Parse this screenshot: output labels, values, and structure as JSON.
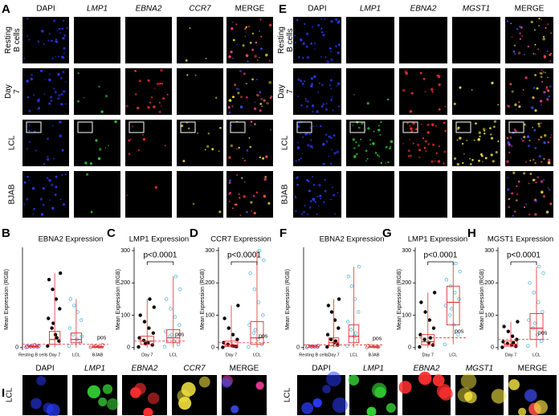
{
  "panel_A": {
    "letter": "A",
    "columns": [
      "DAPI",
      "LMP1",
      "EBNA2",
      "CCR7",
      "MERGE"
    ],
    "rows": [
      "Resting B cells",
      "Day 7",
      "LCL",
      "BJAB"
    ]
  },
  "panel_E": {
    "letter": "E",
    "columns": [
      "DAPI",
      "LMP1",
      "EBNA2",
      "MGST1",
      "MERGE"
    ],
    "rows": [
      "Resting B cells",
      "Day 7",
      "LCL",
      "BJAB"
    ]
  },
  "panel_I_left": {
    "letter": "I",
    "row": "LCL",
    "columns": [
      "DAPI",
      "LMP1",
      "EBNA2",
      "CCR7",
      "MERGE"
    ]
  },
  "panel_I_right": {
    "row": "LCL",
    "columns": [
      "DAPI",
      "LMP1",
      "EBNA2",
      "MGST1",
      "MERGE"
    ]
  },
  "chart_data": [
    {
      "type": "box",
      "letter": "B",
      "title": "EBNA2 Expression",
      "ylabel": "Mean Expression (RGB)",
      "categories": [
        "Resting B cells",
        "Day 7",
        "LCL",
        "BJAB"
      ],
      "colors": [
        "#7a4fa0",
        "#000000",
        "#5fb4e0",
        "#d05050"
      ],
      "boxes": [
        [
          0,
          2,
          3,
          5,
          10
        ],
        [
          0,
          10,
          25,
          50,
          230
        ],
        [
          0,
          15,
          25,
          45,
          150
        ],
        [
          0,
          1,
          2,
          3,
          8
        ]
      ],
      "points": [
        [
          1,
          2,
          3,
          4,
          5,
          6,
          8,
          3,
          2,
          4
        ],
        [
          5,
          20,
          40,
          60,
          90,
          120,
          150,
          180,
          210,
          230,
          30,
          75
        ],
        [
          5,
          15,
          25,
          40,
          60,
          85,
          110,
          130,
          150,
          35
        ],
        [
          1,
          2,
          3,
          4,
          6,
          8,
          2,
          3
        ]
      ],
      "threshold": {
        "label": "pos",
        "value": 10
      },
      "ylim": [
        -8,
        305
      ],
      "yticks": [
        0
      ]
    },
    {
      "type": "box",
      "letter": "C",
      "title": "LMP1 Expression",
      "ylabel": "Mean Expression (RGB)",
      "categories": [
        "Day 7",
        "LCL"
      ],
      "colors": [
        "#000000",
        "#5fb4e0"
      ],
      "boxes": [
        [
          0,
          10,
          20,
          35,
          150
        ],
        [
          0,
          15,
          30,
          55,
          220
        ]
      ],
      "points": [
        [
          2,
          8,
          15,
          22,
          30,
          45,
          60,
          80,
          100,
          125,
          150,
          12
        ],
        [
          3,
          10,
          20,
          35,
          50,
          70,
          95,
          120,
          150,
          180,
          220,
          40
        ]
      ],
      "threshold": {
        "label": "pos",
        "value": 20
      },
      "annotation": "p<0.0001",
      "ylim": [
        -8,
        305
      ],
      "yticks": [
        0,
        100,
        200,
        300
      ]
    },
    {
      "type": "box",
      "letter": "D",
      "title": "CCR7 Expression",
      "ylabel": "Mean Expression (RGB)",
      "categories": [
        "Day 7",
        "LCL"
      ],
      "colors": [
        "#000000",
        "#5fb4e0"
      ],
      "boxes": [
        [
          0,
          3,
          8,
          20,
          130
        ],
        [
          0,
          10,
          30,
          80,
          300
        ]
      ],
      "points": [
        [
          1,
          3,
          6,
          10,
          15,
          25,
          40,
          60,
          90,
          130,
          5
        ],
        [
          2,
          10,
          25,
          45,
          70,
          100,
          140,
          180,
          230,
          270,
          300,
          55
        ]
      ],
      "threshold": {
        "label": "pos",
        "value": 15
      },
      "annotation": "p<0.0001",
      "ylim": [
        -8,
        305
      ],
      "yticks": [
        0,
        100,
        200,
        300
      ]
    },
    {
      "type": "box",
      "letter": "F",
      "title": "EBNA2 Expression",
      "ylabel": "Mean Expression (RGB)",
      "categories": [
        "Resting B cells",
        "Day 7",
        "LCL",
        "BJAB"
      ],
      "colors": [
        "#7a4fa0",
        "#000000",
        "#5fb4e0",
        "#d05050"
      ],
      "boxes": [
        [
          0,
          2,
          3,
          4,
          6
        ],
        [
          0,
          5,
          15,
          30,
          150
        ],
        [
          0,
          15,
          35,
          70,
          250
        ],
        [
          0,
          1,
          2,
          3,
          6
        ]
      ],
      "points": [
        [
          1,
          2,
          3,
          4,
          5,
          6,
          3,
          2
        ],
        [
          2,
          8,
          15,
          25,
          40,
          60,
          85,
          110,
          130,
          150,
          20
        ],
        [
          5,
          20,
          35,
          55,
          80,
          110,
          150,
          190,
          220,
          250,
          45
        ],
        [
          1,
          2,
          3,
          4,
          6,
          2
        ]
      ],
      "threshold": {
        "label": "pos",
        "value": 8
      },
      "ylim": [
        -8,
        305
      ],
      "yticks": [
        0
      ]
    },
    {
      "type": "box",
      "letter": "G",
      "title": "LMP1 Expression",
      "ylabel": "Mean Expression (RGB)",
      "categories": [
        "Day 7",
        "LCL"
      ],
      "colors": [
        "#000000",
        "#5fb4e0"
      ],
      "boxes": [
        [
          0,
          8,
          18,
          40,
          170
        ],
        [
          10,
          70,
          140,
          190,
          260
        ]
      ],
      "points": [
        [
          2,
          8,
          15,
          25,
          40,
          60,
          85,
          110,
          140,
          170,
          30
        ],
        [
          10,
          40,
          70,
          100,
          130,
          150,
          170,
          190,
          210,
          235,
          260,
          120
        ]
      ],
      "threshold": {
        "label": "pos",
        "value": 30
      },
      "annotation": "p<0.0001",
      "ylim": [
        -8,
        305
      ],
      "yticks": [
        0,
        100,
        200,
        300
      ]
    },
    {
      "type": "box",
      "letter": "H",
      "title": "MGST1 Expression",
      "ylabel": "Mean Expression (RGB)",
      "categories": [
        "Day 7",
        "LCL"
      ],
      "colors": [
        "#000000",
        "#5fb4e0"
      ],
      "boxes": [
        [
          0,
          4,
          10,
          20,
          80
        ],
        [
          0,
          25,
          60,
          105,
          250
        ]
      ],
      "points": [
        [
          1,
          4,
          8,
          12,
          18,
          25,
          35,
          50,
          65,
          80,
          15
        ],
        [
          5,
          20,
          40,
          60,
          85,
          110,
          140,
          170,
          200,
          230,
          250,
          75
        ]
      ],
      "threshold": {
        "label": "pos",
        "value": 25
      },
      "annotation": "p<0.0001",
      "ylim": [
        -8,
        305
      ],
      "yticks": [
        0,
        100,
        200,
        300
      ]
    }
  ]
}
